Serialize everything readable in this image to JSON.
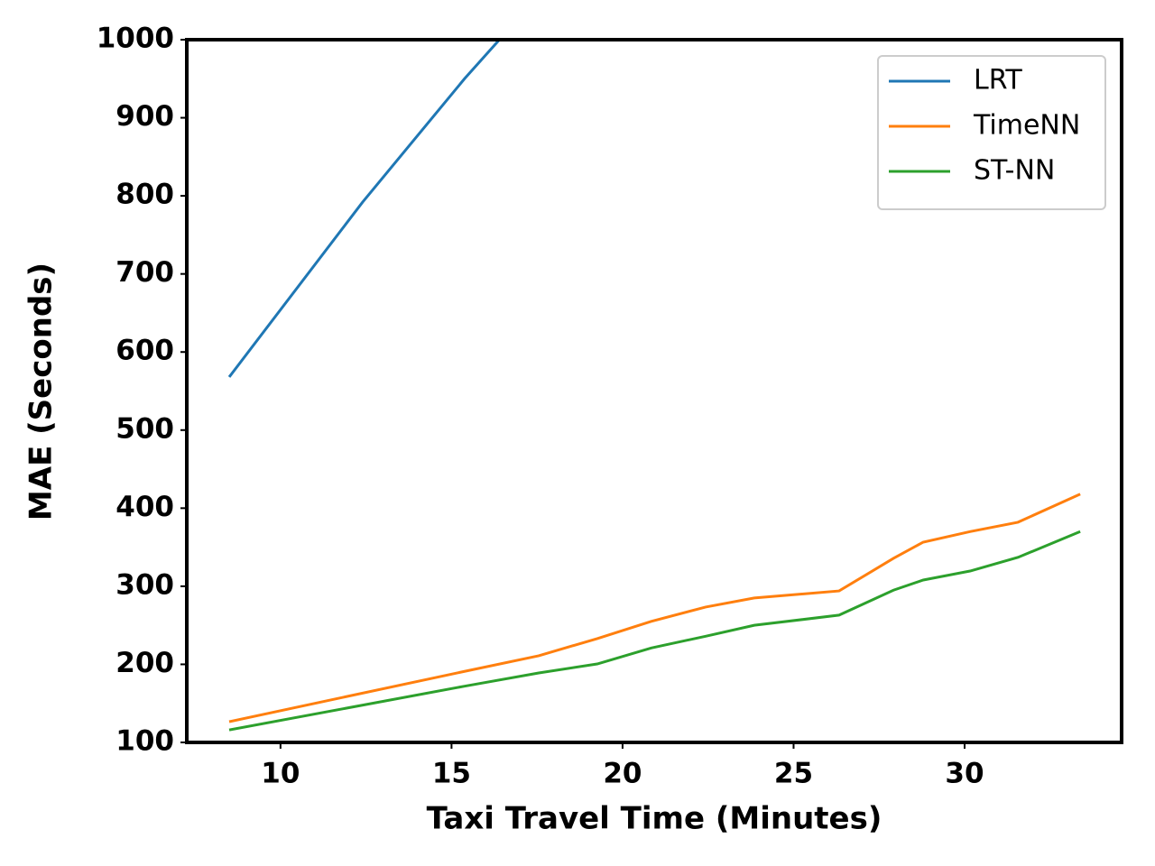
{
  "chart_data": {
    "type": "line",
    "xlabel": "Taxi Travel Time (Minutes)",
    "ylabel": "MAE (Seconds)",
    "xlim": [
      7.26,
      34.59
    ],
    "ylim": [
      100,
      1000
    ],
    "xticks": [
      10,
      15,
      20,
      25,
      30
    ],
    "yticks": [
      100,
      200,
      300,
      400,
      500,
      600,
      700,
      800,
      900,
      1000
    ],
    "legend": "upper right",
    "series": [
      {
        "name": "LRT",
        "color": "#1f77b4",
        "x": [
          8.5,
          12.4,
          15.38,
          16.4
        ],
        "values": [
          568,
          792,
          950,
          1000
        ]
      },
      {
        "name": "TimeNN",
        "color": "#ff7f0e",
        "x": [
          8.5,
          15.38,
          17.55,
          19.26,
          20.84,
          22.43,
          23.85,
          26.33,
          27.92,
          28.79,
          30.16,
          31.56,
          33.38
        ],
        "values": [
          126.6,
          191,
          211,
          233,
          255,
          273.4,
          285,
          294,
          335.7,
          356.5,
          370,
          382,
          418
        ]
      },
      {
        "name": "ST-NN",
        "color": "#2ca02c",
        "x": [
          8.5,
          15.38,
          17.55,
          19.26,
          20.84,
          22.43,
          23.85,
          26.33,
          27.92,
          28.79,
          30.16,
          31.56,
          33.38
        ],
        "values": [
          116,
          172,
          189,
          200.5,
          221,
          236,
          250,
          263,
          295,
          308,
          319.5,
          337,
          370
        ]
      }
    ]
  }
}
